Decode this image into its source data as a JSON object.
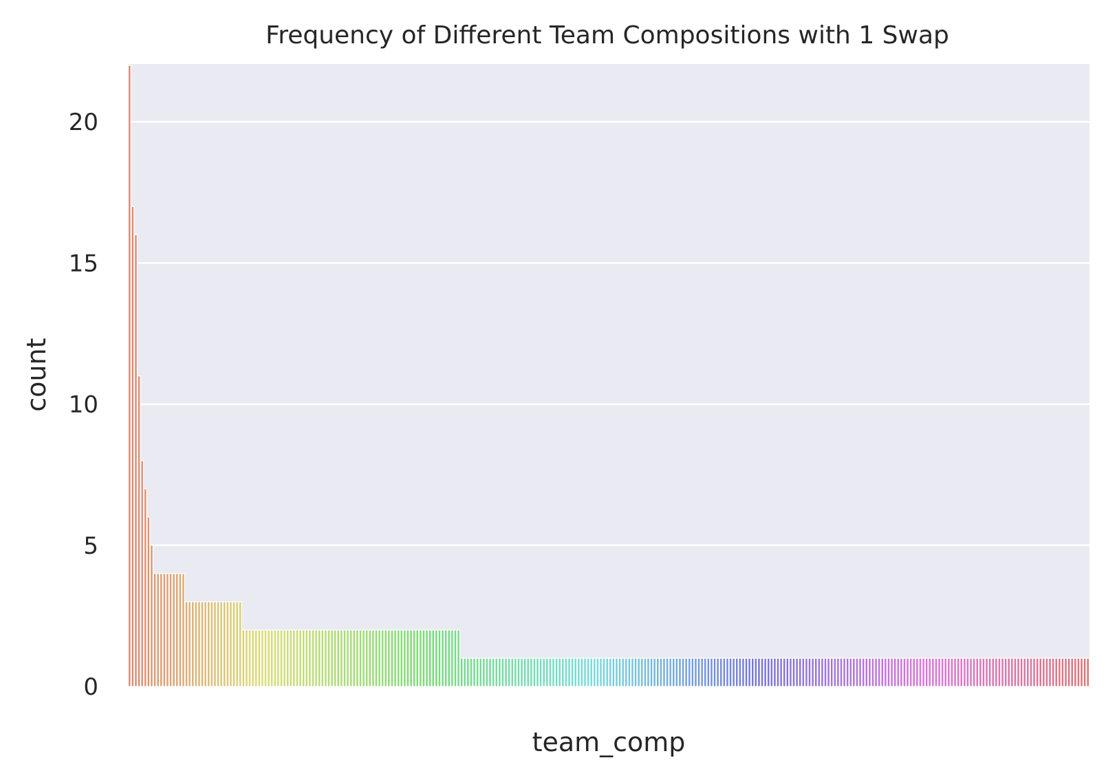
{
  "chart_data": {
    "type": "bar",
    "title": "Frequency of Different Team Compositions with 1 Swap",
    "xlabel": "team_comp",
    "ylabel": "count",
    "ylim": [
      0,
      22.05
    ],
    "yticks": [
      0,
      5,
      10,
      15,
      20
    ],
    "grid": true,
    "legend": "none",
    "x_tick_labels_visible": false,
    "palette": "husl",
    "background": "#eaeaf2",
    "values": [
      22,
      17,
      16,
      11,
      8,
      7,
      6,
      5,
      4,
      4,
      4,
      4,
      4,
      4,
      4,
      4,
      4,
      4,
      3,
      3,
      3,
      3,
      3,
      3,
      3,
      3,
      3,
      3,
      3,
      3,
      3,
      3,
      3,
      3,
      3,
      3,
      2,
      2,
      2,
      2,
      2,
      2,
      2,
      2,
      2,
      2,
      2,
      2,
      2,
      2,
      2,
      2,
      2,
      2,
      2,
      2,
      2,
      2,
      2,
      2,
      2,
      2,
      2,
      2,
      2,
      2,
      2,
      2,
      2,
      2,
      2,
      2,
      2,
      2,
      2,
      2,
      2,
      2,
      2,
      2,
      2,
      2,
      2,
      2,
      2,
      2,
      2,
      2,
      2,
      2,
      2,
      2,
      2,
      2,
      2,
      2,
      2,
      2,
      2,
      2,
      2,
      2,
      2,
      2,
      2,
      1,
      1,
      1,
      1,
      1,
      1,
      1,
      1,
      1,
      1,
      1,
      1,
      1,
      1,
      1,
      1,
      1,
      1,
      1,
      1,
      1,
      1,
      1,
      1,
      1,
      1,
      1,
      1,
      1,
      1,
      1,
      1,
      1,
      1,
      1,
      1,
      1,
      1,
      1,
      1,
      1,
      1,
      1,
      1,
      1,
      1,
      1,
      1,
      1,
      1,
      1,
      1,
      1,
      1,
      1,
      1,
      1,
      1,
      1,
      1,
      1,
      1,
      1,
      1,
      1,
      1,
      1,
      1,
      1,
      1,
      1,
      1,
      1,
      1,
      1,
      1,
      1,
      1,
      1,
      1,
      1,
      1,
      1,
      1,
      1,
      1,
      1,
      1,
      1,
      1,
      1,
      1,
      1,
      1,
      1,
      1,
      1,
      1,
      1,
      1,
      1,
      1,
      1,
      1,
      1,
      1,
      1,
      1,
      1,
      1,
      1,
      1,
      1,
      1,
      1,
      1,
      1,
      1,
      1,
      1,
      1,
      1,
      1,
      1,
      1,
      1,
      1,
      1,
      1,
      1,
      1,
      1,
      1,
      1,
      1,
      1,
      1,
      1,
      1,
      1,
      1,
      1,
      1,
      1,
      1,
      1,
      1,
      1,
      1,
      1,
      1,
      1,
      1,
      1,
      1,
      1,
      1,
      1,
      1,
      1,
      1,
      1,
      1,
      1,
      1,
      1,
      1,
      1,
      1,
      1,
      1,
      1,
      1,
      1,
      1,
      1,
      1,
      1,
      1,
      1,
      1,
      1,
      1,
      1,
      1,
      1,
      1,
      1,
      1,
      1,
      1,
      1,
      1,
      1,
      1,
      1,
      1,
      1,
      1
    ]
  }
}
